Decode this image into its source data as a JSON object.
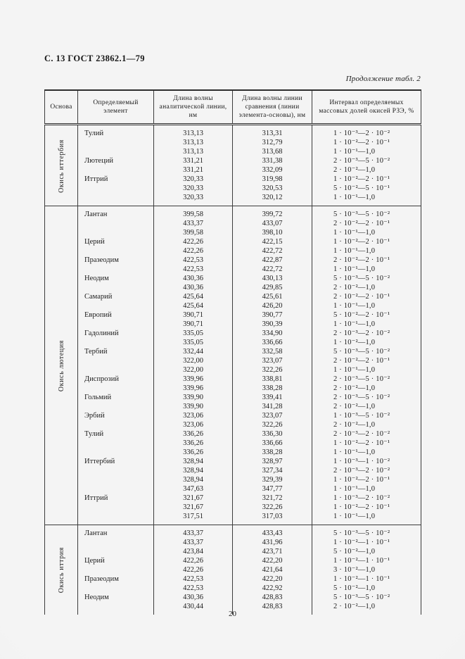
{
  "page": {
    "header": "С. 13 ГОСТ 23862.1—79",
    "continuation": "Продолжение табл. 2",
    "page_number": "20"
  },
  "table": {
    "columns": [
      "Основа",
      "Определяемый элемент",
      "Длина волны аналитической линии, нм",
      "Длина волны линии сравнения (линии элемента-основы), нм",
      "Интервал определяемых массовых долей окисей РЗЭ, %"
    ],
    "sections": [
      {
        "base": "Окись иттербия",
        "rows": [
          [
            "Тулий",
            "313,13",
            "313,31",
            "1 · 10⁻³—2 · 10⁻²"
          ],
          [
            "",
            "313,13",
            "312,79",
            "1 · 10⁻²—2 · 10⁻¹"
          ],
          [
            "",
            "313,13",
            "313,68",
            "1 · 10⁻¹—1,0"
          ],
          [
            "Лютеций",
            "331,21",
            "331,38",
            "2 · 10⁻³—5 · 10⁻²"
          ],
          [
            "",
            "331,21",
            "332,09",
            "2 · 10⁻²—1,0"
          ],
          [
            "Иттрий",
            "320,33",
            "319,98",
            "1 · 10⁻²—2 · 10⁻¹"
          ],
          [
            "",
            "320,33",
            "320,53",
            "5 · 10⁻²—5 · 10⁻¹"
          ],
          [
            "",
            "320,33",
            "320,12",
            "1 · 10⁻¹—1,0"
          ]
        ]
      },
      {
        "base": "Окись лютеция",
        "rows": [
          [
            "Лантан",
            "399,58",
            "399,72",
            "5 · 10⁻³—5 · 10⁻²"
          ],
          [
            "",
            "433,37",
            "433,07",
            "2 · 10⁻²—2 · 10⁻¹"
          ],
          [
            "",
            "399,58",
            "398,10",
            "1 · 10⁻¹—1,0"
          ],
          [
            "Церий",
            "422,26",
            "422,15",
            "1 · 10⁻²—2 · 10⁻¹"
          ],
          [
            "",
            "422,26",
            "422,72",
            "1 · 10⁻¹—1,0"
          ],
          [
            "Празеодим",
            "422,53",
            "422,87",
            "2 · 10⁻²—2 · 10⁻¹"
          ],
          [
            "",
            "422,53",
            "422,72",
            "1 · 10⁻¹—1,0"
          ],
          [
            "Неодим",
            "430,36",
            "430,13",
            "5 · 10⁻³—5 · 10⁻²"
          ],
          [
            "",
            "430,36",
            "429,85",
            "2 · 10⁻²—1,0"
          ],
          [
            "Самарий",
            "425,64",
            "425,61",
            "2 · 10⁻²—2 · 10⁻¹"
          ],
          [
            "",
            "425,64",
            "426,20",
            "1 · 10⁻¹—1,0"
          ],
          [
            "Европий",
            "390,71",
            "390,77",
            "5 · 10⁻²—2 · 10⁻¹"
          ],
          [
            "",
            "390,71",
            "390,39",
            "1 · 10⁻¹—1,0"
          ],
          [
            "Гадолиний",
            "335,05",
            "334,90",
            "2 · 10⁻³—2 · 10⁻²"
          ],
          [
            "",
            "335,05",
            "336,66",
            "1 · 10⁻²—1,0"
          ],
          [
            "Тербий",
            "332,44",
            "332,58",
            "5 · 10⁻³—5 · 10⁻²"
          ],
          [
            "",
            "322,00",
            "323,07",
            "2 · 10⁻²—2 · 10⁻¹"
          ],
          [
            "",
            "322,00",
            "322,26",
            "1 · 10⁻¹—1,0"
          ],
          [
            "Диспрозий",
            "339,96",
            "338,81",
            "2 · 10⁻³—5 · 10⁻²"
          ],
          [
            "",
            "339,96",
            "338,28",
            "2 · 10⁻²—1,0"
          ],
          [
            "Гольмий",
            "339,90",
            "339,41",
            "2 · 10⁻³—5 · 10⁻²"
          ],
          [
            "",
            "339,90",
            "341,28",
            "2 · 10⁻²—1,0"
          ],
          [
            "Эрбий",
            "323,06",
            "323,07",
            "1 · 10⁻³—5 · 10⁻²"
          ],
          [
            "",
            "323,06",
            "322,26",
            "2 · 10⁻²—1,0"
          ],
          [
            "Тулий",
            "336,26",
            "336,30",
            "2 · 10⁻³—2 · 10⁻²"
          ],
          [
            "",
            "336,26",
            "336,66",
            "1 · 10⁻²—2 · 10⁻¹"
          ],
          [
            "",
            "336,26",
            "338,28",
            "1 · 10⁻¹—1,0"
          ],
          [
            "Иттербий",
            "328,94",
            "328,97",
            "1 · 10⁻³—1 · 10⁻²"
          ],
          [
            "",
            "328,94",
            "327,34",
            "2 · 10⁻³—2 · 10⁻²"
          ],
          [
            "",
            "328,94",
            "329,39",
            "1 · 10⁻²—2 · 10⁻¹"
          ],
          [
            "",
            "347,63",
            "347,77",
            "1 · 10⁻¹—1,0"
          ],
          [
            "Иттрий",
            "321,67",
            "321,72",
            "1 · 10⁻³—2 · 10⁻²"
          ],
          [
            "",
            "321,67",
            "322,26",
            "1 · 10⁻²—2 · 10⁻¹"
          ],
          [
            "",
            "317,51",
            "317,03",
            "1 · 10⁻¹—1,0"
          ]
        ]
      },
      {
        "base": "Окись иттрия",
        "rows": [
          [
            "Лантан",
            "433,37",
            "433,43",
            "5 · 10⁻³—5 · 10⁻²"
          ],
          [
            "",
            "433,37",
            "431,96",
            "1 · 10⁻²—1 · 10⁻¹"
          ],
          [
            "",
            "423,84",
            "423,71",
            "5 · 10⁻²—1,0"
          ],
          [
            "Церий",
            "422,26",
            "422,20",
            "1 · 10⁻²—1 · 10⁻¹"
          ],
          [
            "",
            "422,26",
            "421,64",
            "3 · 10⁻²—1,0"
          ],
          [
            "Празеодим",
            "422,53",
            "422,20",
            "1 · 10⁻²—1 · 10⁻¹"
          ],
          [
            "",
            "422,53",
            "422,92",
            "5 · 10⁻²—1,0"
          ],
          [
            "Неодим",
            "430,36",
            "428,83",
            "5 · 10⁻³—5 · 10⁻²"
          ],
          [
            "",
            "430,44",
            "428,83",
            "2 · 10⁻²—1,0"
          ]
        ]
      }
    ]
  }
}
